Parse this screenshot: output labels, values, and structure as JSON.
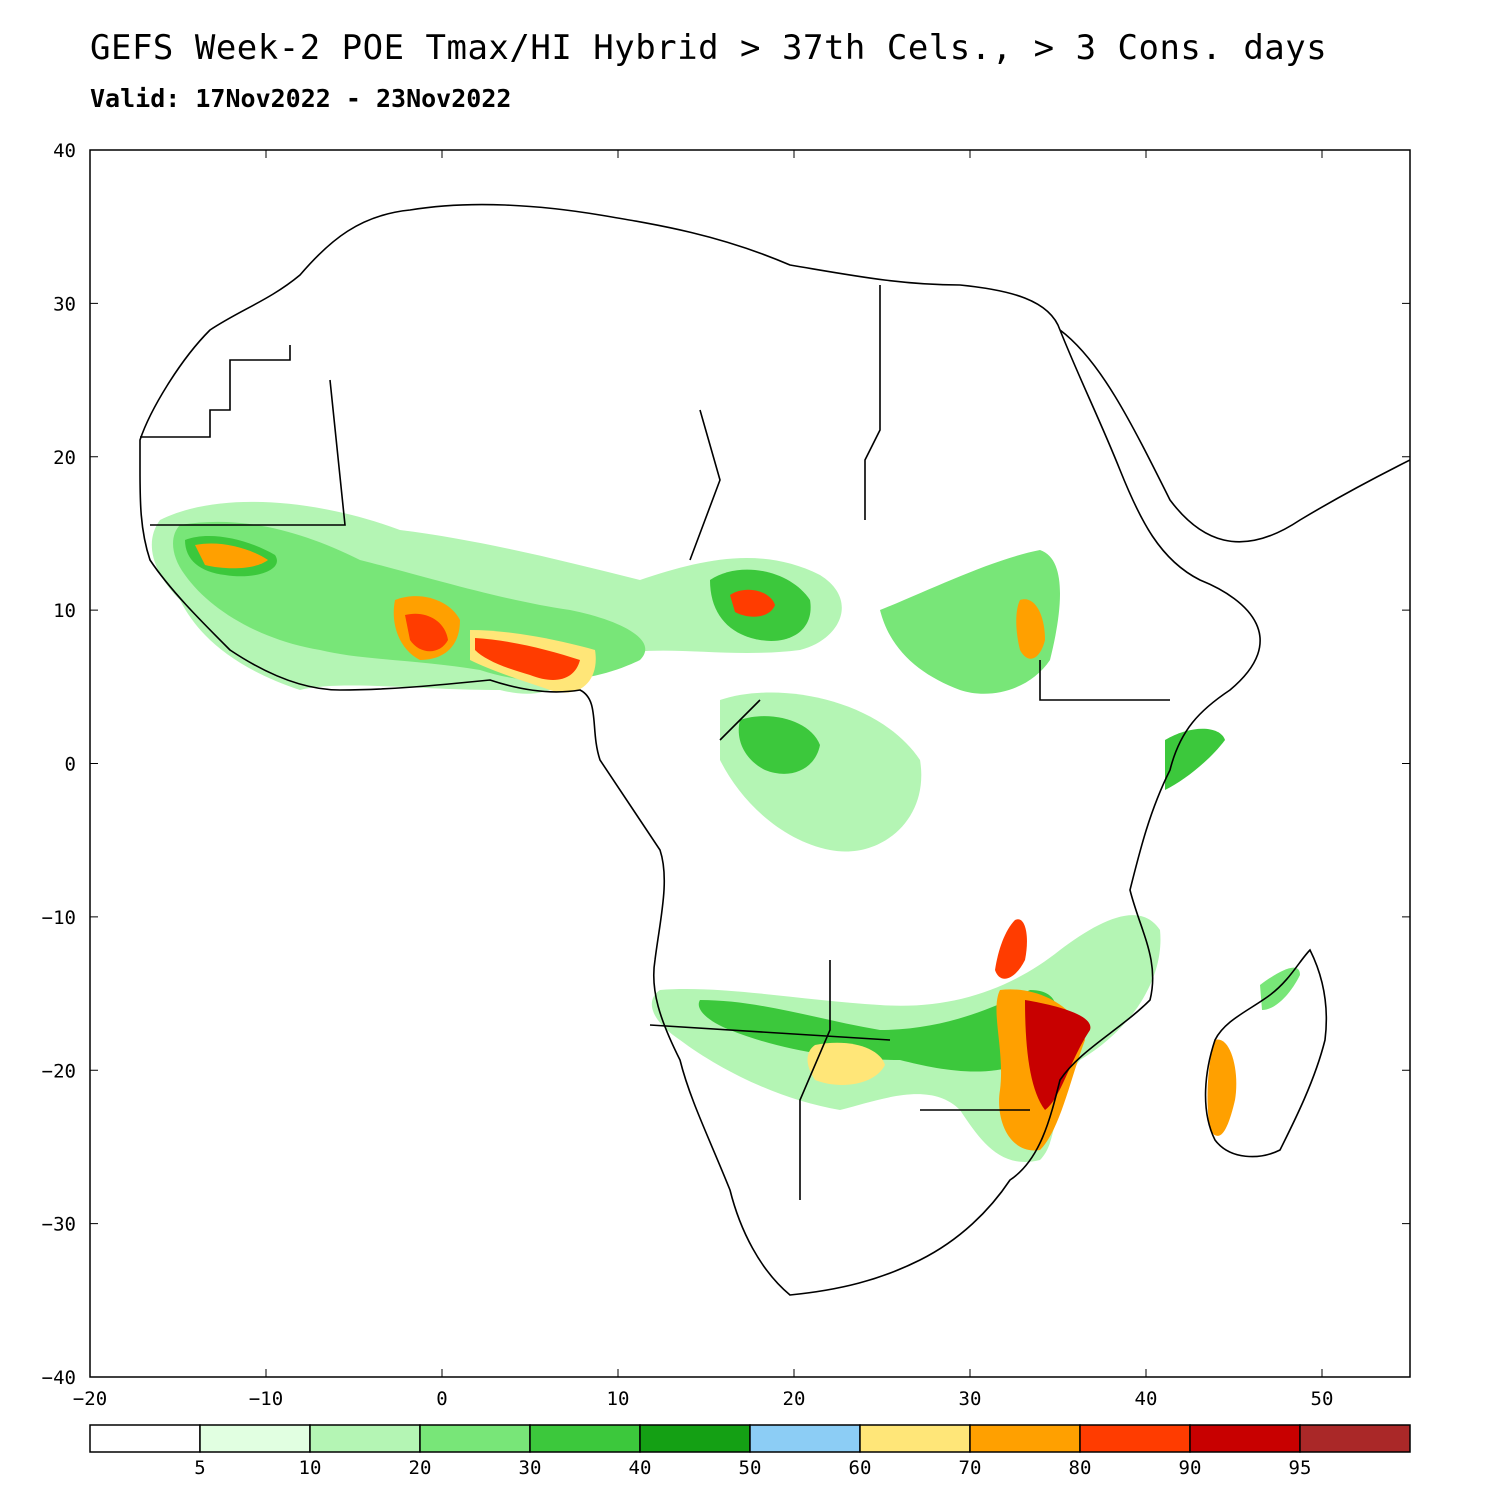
{
  "title": "GEFS Week-2 POE Tmax/HI Hybrid > 37th Cels., > 3 Cons. days",
  "subtitle": "Valid: 17Nov2022 - 23Nov2022",
  "map": {
    "region": "Africa",
    "lon_range": [
      -20,
      55
    ],
    "lat_range": [
      -40,
      40
    ],
    "lon_ticks": [
      "−20",
      "−10",
      "0",
      "10",
      "20",
      "30",
      "40",
      "50"
    ],
    "lat_ticks": [
      "40",
      "30",
      "20",
      "10",
      "0",
      "−10",
      "−20",
      "−30",
      "−40"
    ],
    "lon_values": [
      -20,
      -10,
      0,
      10,
      20,
      30,
      40,
      50
    ],
    "lat_values": [
      40,
      30,
      20,
      10,
      0,
      -10,
      -20,
      -30,
      -40
    ]
  },
  "colorbar": {
    "colors": [
      "#ffffff",
      "#e1ffe1",
      "#b4f5b4",
      "#78e678",
      "#3cc83c",
      "#14a014",
      "#8ccdf5",
      "#ffe678",
      "#ffa000",
      "#ff3c00",
      "#c80000",
      "#aa2828"
    ],
    "labels": [
      "5",
      "10",
      "20",
      "30",
      "40",
      "50",
      "60",
      "70",
      "80",
      "90",
      "95"
    ]
  }
}
